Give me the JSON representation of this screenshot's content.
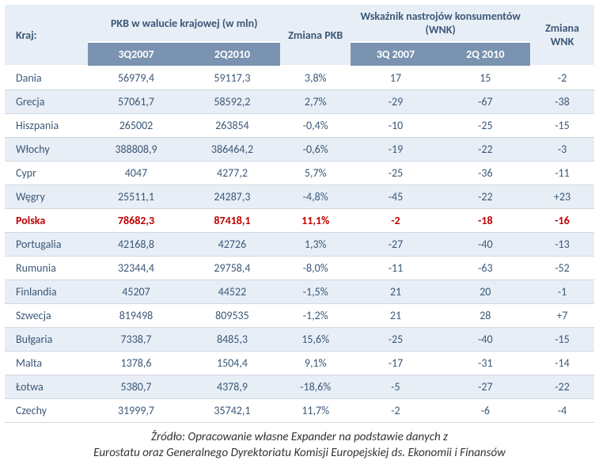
{
  "columns": {
    "country_header": "Kraj:",
    "pkb_header": "PKB w walucie krajowej (w mln)",
    "pkb_change_header": "Zmiana PKB",
    "wnk_header": "Wskaźnik nastrojów konsumentów (WNK)",
    "wnk_change_header": "Zmiana WNK",
    "pkb_sub1": "3Q2007",
    "pkb_sub2": "2Q2010",
    "wnk_sub1": "3Q 2007",
    "wnk_sub2": "2Q 2010"
  },
  "styling": {
    "header_bg": "#e8eef6",
    "header_text": "#3b5878",
    "subheader_bg": "#7a93b0",
    "subheader_text": "#ffffff",
    "row_alt_bg": "#e8eef6",
    "row_bg": "#ffffff",
    "cell_text": "#3b5878",
    "highlight_text": "#c00000",
    "border_color": "#d0d8e2",
    "font_size_header": 14,
    "font_size_body": 14,
    "font_size_source": 15
  },
  "rows": [
    {
      "country": "Dania",
      "pkb1": "56979,4",
      "pkb2": "59117,3",
      "dpkb": "3,8%",
      "wnk1": "17",
      "wnk2": "15",
      "dwnk": "-2",
      "highlight": false
    },
    {
      "country": "Grecja",
      "pkb1": "57061,7",
      "pkb2": "58592,2",
      "dpkb": "2,7%",
      "wnk1": "-29",
      "wnk2": "-67",
      "dwnk": "-38",
      "highlight": false
    },
    {
      "country": "Hiszpania",
      "pkb1": "265002",
      "pkb2": "263854",
      "dpkb": "-0,4%",
      "wnk1": "-10",
      "wnk2": "-25",
      "dwnk": "-15",
      "highlight": false
    },
    {
      "country": "Włochy",
      "pkb1": "388808,9",
      "pkb2": "386464,2",
      "dpkb": "-0,6%",
      "wnk1": "-19",
      "wnk2": "-22",
      "dwnk": "-3",
      "highlight": false
    },
    {
      "country": "Cypr",
      "pkb1": "4047",
      "pkb2": "4277,2",
      "dpkb": "5,7%",
      "wnk1": "-25",
      "wnk2": "-36",
      "dwnk": "-11",
      "highlight": false
    },
    {
      "country": "Węgry",
      "pkb1": "25511,1",
      "pkb2": "24287,3",
      "dpkb": "-4,8%",
      "wnk1": "-45",
      "wnk2": "-22",
      "dwnk": "+23",
      "highlight": false
    },
    {
      "country": "Polska",
      "pkb1": "78682,3",
      "pkb2": "87418,1",
      "dpkb": "11,1%",
      "wnk1": "-2",
      "wnk2": "-18",
      "dwnk": "-16",
      "highlight": true
    },
    {
      "country": "Portugalia",
      "pkb1": "42168,8",
      "pkb2": "42726",
      "dpkb": "1,3%",
      "wnk1": "-27",
      "wnk2": "-40",
      "dwnk": "-13",
      "highlight": false
    },
    {
      "country": "Rumunia",
      "pkb1": "32344,4",
      "pkb2": "29758,4",
      "dpkb": "-8,0%",
      "wnk1": "-11",
      "wnk2": "-63",
      "dwnk": "-52",
      "highlight": false
    },
    {
      "country": "Finlandia",
      "pkb1": "45207",
      "pkb2": "44522",
      "dpkb": "-1,5%",
      "wnk1": "21",
      "wnk2": "20",
      "dwnk": "-1",
      "highlight": false
    },
    {
      "country": "Szwecja",
      "pkb1": "819498",
      "pkb2": "809535",
      "dpkb": "-1,2%",
      "wnk1": "21",
      "wnk2": "28",
      "dwnk": "+7",
      "highlight": false
    },
    {
      "country": "Bułgaria",
      "pkb1": "7338,7",
      "pkb2": "8485,3",
      "dpkb": "15,6%",
      "wnk1": "-25",
      "wnk2": "-40",
      "dwnk": "-15",
      "highlight": false
    },
    {
      "country": "Malta",
      "pkb1": "1378,6",
      "pkb2": "1504,4",
      "dpkb": "9,1%",
      "wnk1": "-17",
      "wnk2": "-31",
      "dwnk": "-14",
      "highlight": false
    },
    {
      "country": "Łotwa",
      "pkb1": "5380,7",
      "pkb2": "4378,9",
      "dpkb": "-18,6%",
      "wnk1": "-5",
      "wnk2": "-27",
      "dwnk": "-22",
      "highlight": false
    },
    {
      "country": "Czechy",
      "pkb1": "31999,7",
      "pkb2": "35742,1",
      "dpkb": "11,7%",
      "wnk1": "-2",
      "wnk2": "-6",
      "dwnk": "-4",
      "highlight": false
    }
  ],
  "source": {
    "line1": "Źródło: Opracowanie własne Expander na podstawie danych z",
    "line2": "Eurostatu oraz Generalnego Dyrektoriatu Komisji Europejskiej ds. Ekonomii i Finansów"
  }
}
